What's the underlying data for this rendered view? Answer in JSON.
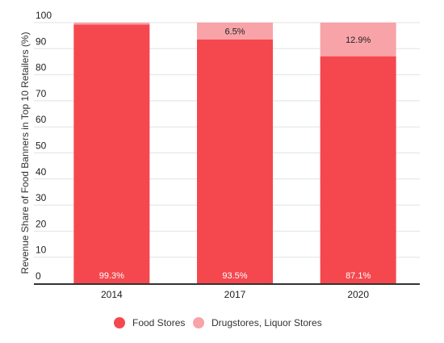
{
  "chart_data": {
    "type": "bar",
    "stacked": true,
    "categories": [
      "2014",
      "2017",
      "2020"
    ],
    "series": [
      {
        "name": "Food Stores",
        "color": "#f4484e",
        "values": [
          99.3,
          93.5,
          87.1
        ],
        "labels": [
          "99.3%",
          "93.5%",
          "87.1%"
        ]
      },
      {
        "name": "Drugstores, Liquor Stores",
        "color": "#f8a3a8",
        "values": [
          0.7,
          6.5,
          12.9
        ],
        "labels": [
          "",
          "6.5%",
          "12.9%"
        ]
      }
    ],
    "title": "",
    "xlabel": "",
    "ylabel": "Revenue Share of Food Banners in Top 10 Retailers (%)",
    "ylim": [
      0,
      100
    ],
    "yticks": [
      0,
      10,
      20,
      30,
      40,
      50,
      60,
      70,
      80,
      90,
      100
    ],
    "grid": true,
    "legend_position": "bottom"
  }
}
